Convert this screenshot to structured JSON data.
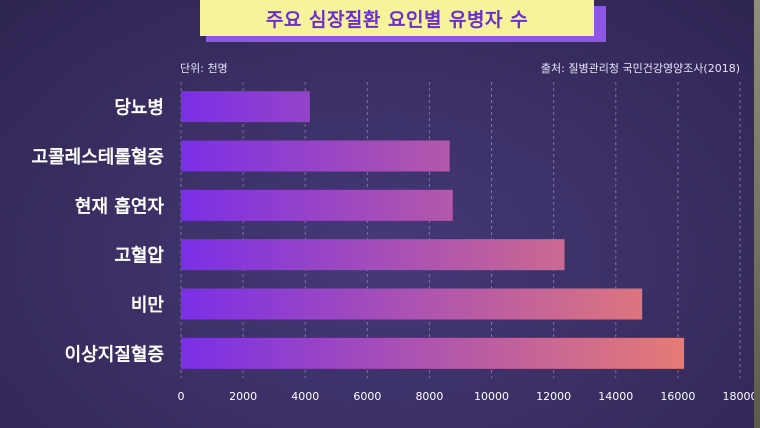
{
  "title": "주요 심장질환 요인별 유병자 수",
  "unit_label": "단위: 천명",
  "source_label": "출처: 질병관리청 국민건강영양조사(2018)",
  "colors": {
    "background": "#3b2f63",
    "title_bg": "#f7f39a",
    "title_text": "#6a2fd0",
    "bar_start": "#7a2fe6",
    "bar_end": "#e77c74",
    "text": "#ffffff",
    "grid": "#a59ac6"
  },
  "chart_data": {
    "type": "bar",
    "orientation": "horizontal",
    "categories": [
      "당뇨병",
      "고콜레스테롤혈증",
      "현재 흡연자",
      "고혈압",
      "비만",
      "이상지질혈증"
    ],
    "values": [
      4150,
      8650,
      8750,
      12350,
      14850,
      16200
    ],
    "xlim": [
      0,
      18000
    ],
    "xticks": [
      0,
      2000,
      4000,
      6000,
      8000,
      10000,
      12000,
      14000,
      16000,
      18000
    ],
    "grid": "vertical dashed",
    "legend": "none"
  }
}
